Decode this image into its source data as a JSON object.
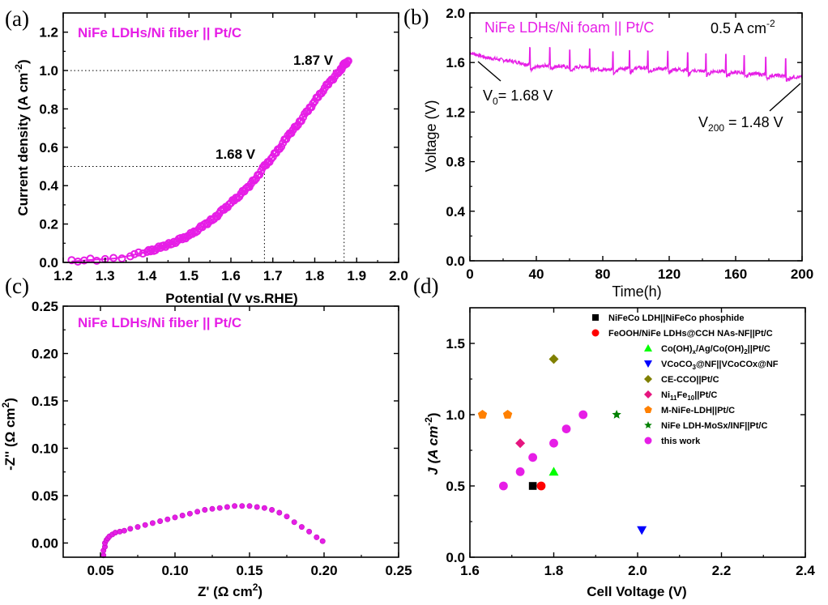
{
  "chart_data": [
    {
      "id": "a",
      "type": "line",
      "panel_label": "(a)",
      "title": "NiFe LDHs/Ni fiber || Pt/C",
      "xlabel": "Potential (V vs.RHE)",
      "ylabel": "Current density (A cm-2)",
      "ylabel_main": "Current density (A cm",
      "ylabel_sup": "-2",
      "ylabel_end": ")",
      "xlim": [
        1.2,
        2.0
      ],
      "ylim": [
        0.0,
        1.3
      ],
      "xticks": [
        "1.2",
        "1.3",
        "1.4",
        "1.5",
        "1.6",
        "1.7",
        "1.8",
        "1.9",
        "2.0"
      ],
      "yticks": [
        "0.0",
        "0.2",
        "0.4",
        "0.6",
        "0.8",
        "1.0",
        "1.2"
      ],
      "annotations": [
        {
          "text": "1.68 V",
          "x": 1.68,
          "y": 0.5
        },
        {
          "text": "1.87 V",
          "x": 1.87,
          "y": 1.0
        }
      ],
      "color": "#e61ee6",
      "series": [
        {
          "name": "NiFe LDHs/Ni fiber || Pt/C",
          "x": [
            1.22,
            1.25,
            1.28,
            1.32,
            1.36,
            1.38,
            1.4,
            1.42,
            1.44,
            1.46,
            1.48,
            1.5,
            1.52,
            1.54,
            1.56,
            1.58,
            1.6,
            1.62,
            1.64,
            1.66,
            1.68,
            1.7,
            1.72,
            1.74,
            1.76,
            1.78,
            1.8,
            1.82,
            1.84,
            1.86,
            1.87,
            1.88
          ],
          "y": [
            0.005,
            0.01,
            0.015,
            0.02,
            0.035,
            0.045,
            0.055,
            0.07,
            0.085,
            0.1,
            0.12,
            0.14,
            0.17,
            0.2,
            0.23,
            0.27,
            0.31,
            0.35,
            0.39,
            0.44,
            0.5,
            0.55,
            0.61,
            0.67,
            0.72,
            0.78,
            0.84,
            0.9,
            0.95,
            1.0,
            1.03,
            1.05
          ]
        }
      ]
    },
    {
      "id": "b",
      "type": "line",
      "panel_label": "(b)",
      "title": "NiFe LDHs/Ni foam || Pt/C",
      "condition_main": "0.5 A cm",
      "condition_sup": "-2",
      "xlabel": "Time(h)",
      "ylabel": "Voltage (V)",
      "xlim": [
        0,
        200
      ],
      "ylim": [
        0.0,
        2.0
      ],
      "xticks": [
        "0",
        "40",
        "80",
        "120",
        "160",
        "200"
      ],
      "yticks": [
        "0.0",
        "0.4",
        "0.8",
        "1.2",
        "1.6",
        "2.0"
      ],
      "annotations": [
        {
          "main": "V",
          "sub": "0",
          "rest": "= 1.68 V",
          "x": 0,
          "y": 1.68
        },
        {
          "main": "V",
          "sub": "200",
          "rest": " = 1.48 V",
          "x": 200,
          "y": 1.48
        }
      ],
      "color": "#e61ee6",
      "spike_times": [
        36,
        48,
        60,
        72,
        86,
        96,
        107,
        119,
        131,
        142,
        154,
        165,
        178,
        190
      ],
      "series": [
        {
          "name": "Voltage",
          "x": [
            0,
            5,
            10,
            20,
            30,
            36,
            40,
            48,
            55,
            60,
            72,
            80,
            90,
            100,
            110,
            120,
            130,
            140,
            150,
            160,
            170,
            180,
            190,
            200
          ],
          "y": [
            1.68,
            1.66,
            1.64,
            1.62,
            1.6,
            1.58,
            1.56,
            1.58,
            1.57,
            1.56,
            1.57,
            1.54,
            1.55,
            1.56,
            1.55,
            1.55,
            1.54,
            1.53,
            1.53,
            1.52,
            1.51,
            1.5,
            1.49,
            1.48
          ]
        }
      ]
    },
    {
      "id": "c",
      "type": "scatter",
      "panel_label": "(c)",
      "title": "NiFe LDHs/Ni fiber || Pt/C",
      "xlabel": "Z' (Ω cm2)",
      "xlabel_main": "Z' (Ω cm",
      "xlabel_sup": "2",
      "xlabel_end": ")",
      "ylabel": "-Z'' (Ω cm2)",
      "ylabel_main": "-Z'' (Ω cm",
      "ylabel_sup": "2",
      "ylabel_end": ")",
      "xlim": [
        0.025,
        0.25
      ],
      "ylim": [
        -0.015,
        0.25
      ],
      "xticks": [
        "0.05",
        "0.10",
        "0.15",
        "0.20",
        "0.25"
      ],
      "yticks": [
        "0.00",
        "0.05",
        "0.10",
        "0.15",
        "0.20",
        "0.25"
      ],
      "color": "#e61ee6",
      "series": [
        {
          "name": "Nyquist",
          "x": [
            0.052,
            0.052,
            0.053,
            0.053,
            0.054,
            0.055,
            0.056,
            0.058,
            0.06,
            0.063,
            0.066,
            0.07,
            0.075,
            0.08,
            0.085,
            0.09,
            0.095,
            0.1,
            0.105,
            0.11,
            0.115,
            0.12,
            0.125,
            0.13,
            0.135,
            0.14,
            0.145,
            0.15,
            0.155,
            0.16,
            0.165,
            0.17,
            0.175,
            0.18,
            0.185,
            0.19,
            0.195,
            0.199
          ],
          "y": [
            -0.013,
            -0.008,
            -0.004,
            0.0,
            0.003,
            0.005,
            0.007,
            0.009,
            0.011,
            0.012,
            0.013,
            0.015,
            0.017,
            0.019,
            0.021,
            0.023,
            0.025,
            0.027,
            0.029,
            0.031,
            0.033,
            0.035,
            0.036,
            0.037,
            0.038,
            0.039,
            0.039,
            0.039,
            0.038,
            0.037,
            0.035,
            0.032,
            0.028,
            0.022,
            0.017,
            0.012,
            0.006,
            0.002
          ]
        }
      ]
    },
    {
      "id": "d",
      "type": "scatter",
      "panel_label": "(d)",
      "xlabel": "Cell Voltage (V)",
      "ylabel": "J (A cm-2)",
      "ylabel_main": "J (A cm",
      "ylabel_sup": "-2",
      "ylabel_end": ")",
      "xlim": [
        1.6,
        2.4
      ],
      "ylim": [
        0.0,
        1.75
      ],
      "xticks": [
        "1.6",
        "1.8",
        "2.0",
        "2.2",
        "2.4"
      ],
      "yticks": [
        "0.0",
        "0.5",
        "1.0",
        "1.5"
      ],
      "legend_position": "upper-right",
      "series": [
        {
          "name": "NiFeCo LDH||NiFeCo phosphide",
          "label": [
            [
              "NiFeCo LDH||NiFeCo phosphide",
              ""
            ]
          ],
          "marker": "square",
          "color": "#000000",
          "x": [
            1.75
          ],
          "y": [
            0.5
          ]
        },
        {
          "name": "FeOOH/NiFe LDHs@CCH NAs-NF||Pt/C",
          "label": [
            [
              "FeOOH/NiFe LDHs@CCH NAs-NF||Pt/C",
              ""
            ]
          ],
          "marker": "circle",
          "color": "#ff0000",
          "x": [
            1.77
          ],
          "y": [
            0.5
          ]
        },
        {
          "name": "Co(OH)x/Ag/Co(OH)2||Pt/C",
          "label": [
            [
              "Co(OH)",
              ""
            ],
            [
              "x",
              "sub"
            ],
            [
              "/Ag/Co(OH)",
              ""
            ],
            [
              "2",
              "sub"
            ],
            [
              "||Pt/C",
              ""
            ]
          ],
          "marker": "triangle-up",
          "color": "#00ff00",
          "x": [
            1.8
          ],
          "y": [
            0.6
          ]
        },
        {
          "name": "VCoCO3@NF||VCoCOx@NF",
          "label": [
            [
              "VCoCO",
              ""
            ],
            [
              "3",
              "sub"
            ],
            [
              "@NF||VCoCOx@NF",
              ""
            ]
          ],
          "marker": "triangle-down",
          "color": "#0000ff",
          "x": [
            2.01
          ],
          "y": [
            0.19
          ]
        },
        {
          "name": "CE-CCO||Pt/C",
          "label": [
            [
              "CE-CCO||Pt/C",
              ""
            ]
          ],
          "marker": "diamond",
          "color": "#808000",
          "x": [
            1.8
          ],
          "y": [
            1.39
          ]
        },
        {
          "name": "Ni11Fe10||Pt/C",
          "label": [
            [
              "Ni",
              ""
            ],
            [
              "11",
              "sub"
            ],
            [
              "Fe",
              ""
            ],
            [
              "10",
              "sub"
            ],
            [
              "||Pt/C",
              ""
            ]
          ],
          "marker": "diamond",
          "color": "#e6157f",
          "x": [
            1.72
          ],
          "y": [
            0.8
          ]
        },
        {
          "name": "M-NiFe-LDH||Pt/C",
          "label": [
            [
              "M-NiFe-LDH||Pt/C",
              ""
            ]
          ],
          "marker": "pentagon",
          "color": "#ff8000",
          "x": [
            1.63,
            1.69
          ],
          "y": [
            1.0,
            1.0
          ]
        },
        {
          "name": "NiFe LDH-MoSx/INF||Pt/C",
          "label": [
            [
              "NiFe LDH-MoSx/INF||Pt/C",
              ""
            ]
          ],
          "marker": "star",
          "color": "#008000",
          "x": [
            1.95
          ],
          "y": [
            1.0
          ]
        },
        {
          "name": "this work",
          "label": [
            [
              "this work",
              ""
            ]
          ],
          "marker": "circle",
          "color": "#e61ee6",
          "x": [
            1.68,
            1.72,
            1.75,
            1.8,
            1.83,
            1.87
          ],
          "y": [
            0.5,
            0.6,
            0.7,
            0.8,
            0.9,
            1.0
          ]
        }
      ]
    }
  ]
}
